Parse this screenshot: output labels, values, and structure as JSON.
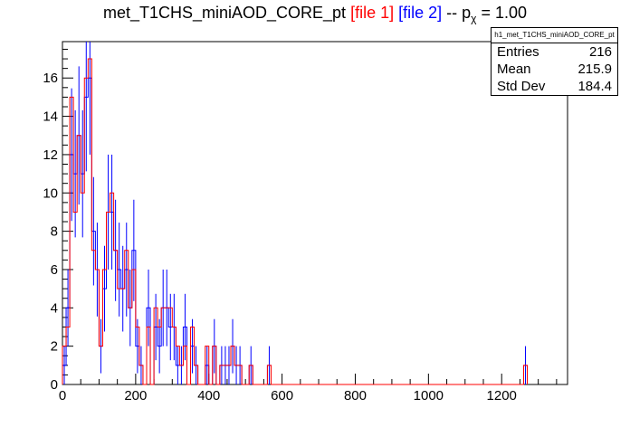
{
  "title": {
    "main": "met_T1CHS_miniAOD_CORE_pt",
    "file1": "[file 1]",
    "file2": "[file 2]",
    "sep": "-- p",
    "sub": "χ",
    "pvalue": "= 1.00"
  },
  "stats": {
    "name": "h1_met_T1CHS_miniAOD_CORE_pt",
    "rows": [
      {
        "label": "Entries",
        "value": "216"
      },
      {
        "label": "Mean",
        "value": "215.9"
      },
      {
        "label": "Std Dev",
        "value": "184.4"
      }
    ]
  },
  "colors": {
    "file1": "#ff0000",
    "file2": "#0000ff",
    "axis": "#000000"
  },
  "chart_data": {
    "type": "histogram",
    "title": "met_T1CHS_miniAOD_CORE_pt [file 1] [file 2] -- p_χ = 1.00",
    "xlabel": "",
    "ylabel": "",
    "xlim": [
      0,
      1380
    ],
    "ylim": [
      0,
      17.9
    ],
    "bin_width": 10,
    "xticks": [
      0,
      200,
      400,
      600,
      800,
      1000,
      1200
    ],
    "yticks": [
      0,
      2,
      4,
      6,
      8,
      10,
      12,
      14,
      16
    ],
    "series": [
      {
        "name": "file 1",
        "color": "#ff0000",
        "style": "step",
        "values": [
          2,
          3,
          15,
          9,
          13,
          10,
          16,
          17,
          7,
          6,
          2,
          6,
          9,
          10,
          7,
          5,
          5,
          7,
          4,
          6,
          3,
          1,
          0,
          3,
          0,
          4,
          3,
          4,
          4,
          4,
          3,
          2,
          1,
          2,
          0,
          3,
          1,
          0,
          0,
          2,
          0,
          2,
          0,
          1,
          1,
          1,
          2,
          1,
          1,
          0,
          0,
          1,
          0,
          0,
          0,
          0,
          1,
          0,
          0,
          0,
          0,
          0,
          0,
          0,
          0,
          0,
          0,
          0,
          0,
          0,
          0,
          0,
          0,
          0,
          0,
          0,
          0,
          0,
          0,
          0,
          0,
          0,
          0,
          0,
          0,
          0,
          0,
          0,
          0,
          0,
          0,
          0,
          0,
          0,
          0,
          0,
          0,
          0,
          0,
          0,
          0,
          0,
          0,
          0,
          0,
          0,
          0,
          0,
          0,
          0,
          0,
          0,
          0,
          0,
          0,
          0,
          0,
          0,
          0,
          0,
          0,
          0,
          0,
          0,
          0,
          0,
          1
        ]
      },
      {
        "name": "file 2",
        "color": "#0000ff",
        "style": "step+errors",
        "values": [
          1,
          4,
          12,
          11,
          13,
          11,
          15,
          16,
          8,
          6,
          2,
          5,
          9,
          9,
          7,
          6,
          5,
          6,
          4,
          7,
          2,
          1,
          0,
          4,
          0,
          3,
          2,
          4,
          4,
          3,
          3,
          1,
          1,
          3,
          0,
          2,
          1,
          0,
          0,
          1,
          0,
          2,
          0,
          1,
          1,
          1,
          2,
          1,
          1,
          0,
          0,
          1,
          0,
          0,
          0,
          0,
          1,
          0,
          0,
          0,
          0,
          0,
          0,
          0,
          0,
          0,
          0,
          0,
          0,
          0,
          0,
          0,
          0,
          0,
          0,
          0,
          0,
          0,
          0,
          0,
          0,
          0,
          0,
          0,
          0,
          0,
          0,
          0,
          0,
          0,
          0,
          0,
          0,
          0,
          0,
          0,
          0,
          0,
          0,
          0,
          0,
          0,
          0,
          0,
          0,
          0,
          0,
          0,
          0,
          0,
          0,
          0,
          0,
          0,
          0,
          0,
          0,
          0,
          0,
          0,
          0,
          0,
          0,
          0,
          0,
          0,
          1
        ]
      }
    ]
  }
}
